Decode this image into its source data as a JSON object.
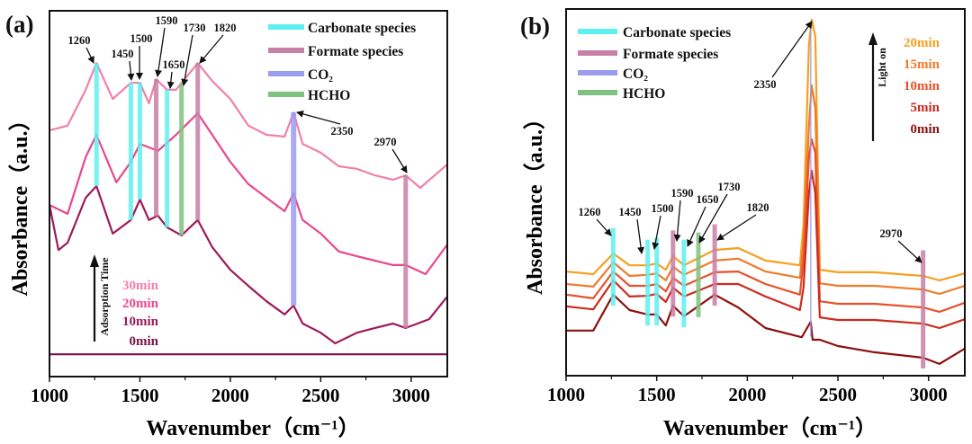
{
  "chart_data": [
    {
      "panel": "(a)",
      "type": "line",
      "xlabel": "Wavenumber（cm⁻¹）",
      "ylabel": "Absorbance（a.u.）",
      "xlim": [
        1000,
        3200
      ],
      "ylim": [
        0,
        100
      ],
      "xticks": [
        "1000",
        "1500",
        "2000",
        "2500",
        "3000"
      ],
      "xtick_values": [
        1000,
        1500,
        2000,
        2500,
        3000
      ],
      "grid": false,
      "legend_placement": "top-right",
      "legend": [
        {
          "label": "Carbonate species",
          "color": "#5ef0f0"
        },
        {
          "label": "Formate species",
          "color": "#c77fa6"
        },
        {
          "label": "CO₂",
          "color": "#9b9bf0"
        },
        {
          "label": "HCHO",
          "color": "#7fc27f"
        }
      ],
      "peaks": [
        {
          "label": "1260",
          "x": 1260,
          "species": "Carbonate species"
        },
        {
          "label": "1450",
          "x": 1450,
          "species": "Carbonate species"
        },
        {
          "label": "1500",
          "x": 1500,
          "species": "Carbonate species"
        },
        {
          "label": "1590",
          "x": 1590,
          "species": "Formate species"
        },
        {
          "label": "1650",
          "x": 1650,
          "species": "Carbonate species"
        },
        {
          "label": "1730",
          "x": 1730,
          "species": "HCHO"
        },
        {
          "label": "1820",
          "x": 1820,
          "species": "Formate species"
        },
        {
          "label": "2350",
          "x": 2350,
          "species": "CO₂"
        },
        {
          "label": "2970",
          "x": 2970,
          "species": "Formate species"
        }
      ],
      "arrow_annotation": "Adsorption Time",
      "series": [
        {
          "name": "30min",
          "color": "#f27fab",
          "x": [
            1000,
            1100,
            1200,
            1260,
            1350,
            1450,
            1500,
            1550,
            1590,
            1650,
            1700,
            1820,
            1900,
            2000,
            2100,
            2200,
            2300,
            2350,
            2400,
            2500,
            2600,
            2700,
            2800,
            2900,
            2970,
            3050,
            3200
          ],
          "y": [
            67.3,
            68.6,
            78.4,
            85.7,
            75.9,
            80.3,
            80.3,
            74.7,
            81.3,
            78.4,
            78.4,
            85.7,
            80.8,
            75.9,
            68.6,
            66.1,
            65.6,
            72.2,
            63.6,
            61.2,
            57.5,
            56.8,
            55.0,
            53.8,
            55.0,
            51.6,
            58.0
          ]
        },
        {
          "name": "20min",
          "color": "#e8478f",
          "x": [
            1000,
            1100,
            1200,
            1260,
            1370,
            1450,
            1500,
            1600,
            1700,
            1820,
            1900,
            2000,
            2100,
            2200,
            2300,
            2350,
            2400,
            2500,
            2600,
            2700,
            2800,
            2900,
            2970,
            3080,
            3200
          ],
          "y": [
            46.9,
            44.5,
            60.0,
            66.1,
            53.1,
            58.7,
            63.6,
            61.7,
            66.1,
            72.0,
            66.1,
            58.7,
            52.6,
            48.9,
            45.2,
            50.1,
            42.8,
            39.1,
            34.2,
            32.9,
            31.7,
            30.5,
            30.5,
            28.0,
            36.1
          ]
        },
        {
          "name": "10min",
          "color": "#9e1a5a",
          "x": [
            1000,
            1050,
            1100,
            1200,
            1260,
            1350,
            1450,
            1500,
            1550,
            1600,
            1650,
            1730,
            1820,
            1900,
            2000,
            2100,
            2200,
            2300,
            2350,
            2400,
            2500,
            2580,
            2700,
            2800,
            2900,
            2970,
            3100,
            3200
          ],
          "y": [
            46.9,
            34.6,
            36.6,
            48.9,
            52.1,
            39.1,
            42.8,
            48.4,
            42.8,
            44.0,
            40.8,
            38.6,
            42.8,
            35.4,
            29.2,
            24.8,
            20.6,
            17.0,
            19.4,
            14.5,
            12.0,
            9.1,
            12.0,
            13.3,
            14.5,
            13.3,
            15.7,
            21.9
          ]
        },
        {
          "name": "0min",
          "color": "#7a1048",
          "x": [
            1000,
            3200
          ],
          "y": [
            6.1,
            6.1
          ]
        }
      ]
    },
    {
      "panel": "(b)",
      "type": "line",
      "xlabel": "Wavenumber（cm⁻¹）",
      "ylabel": "Absorbance（a.u.）",
      "xlim": [
        1000,
        3200
      ],
      "ylim": [
        0,
        100
      ],
      "xticks": [
        "1000",
        "1500",
        "2000",
        "2500",
        "3000"
      ],
      "xtick_values": [
        1000,
        1500,
        2000,
        2500,
        3000
      ],
      "grid": false,
      "legend_placement": "top-left",
      "legend": [
        {
          "label": "Carbonate species",
          "color": "#5ef0f0"
        },
        {
          "label": "Formate species",
          "color": "#c77fa6"
        },
        {
          "label": "CO₂",
          "color": "#9b9bf0"
        },
        {
          "label": "HCHO",
          "color": "#7fc27f"
        }
      ],
      "peaks": [
        {
          "label": "1260",
          "x": 1260,
          "species": "Carbonate species"
        },
        {
          "label": "1450",
          "x": 1450,
          "species": "Carbonate species"
        },
        {
          "label": "1500",
          "x": 1500,
          "species": "Carbonate species"
        },
        {
          "label": "1590",
          "x": 1590,
          "species": "Formate species"
        },
        {
          "label": "1650",
          "x": 1650,
          "species": "Carbonate species"
        },
        {
          "label": "1730",
          "x": 1730,
          "species": "HCHO"
        },
        {
          "label": "1820",
          "x": 1820,
          "species": "Formate species"
        },
        {
          "label": "2350",
          "x": 2350,
          "species": "CO₂"
        },
        {
          "label": "2970",
          "x": 2970,
          "species": "Formate species"
        }
      ],
      "arrow_annotation": "Light on",
      "series": [
        {
          "name": "20min",
          "color": "#f5a020",
          "x": [
            1000,
            1150,
            1260,
            1350,
            1450,
            1500,
            1550,
            1590,
            1650,
            1820,
            1950,
            2100,
            2290,
            2310,
            2340,
            2355,
            2375,
            2400,
            2500,
            2700,
            2970,
            3060,
            3200
          ],
          "y": [
            28.4,
            27.7,
            33.3,
            30.1,
            30.1,
            30.6,
            28.9,
            32.6,
            30.1,
            34.3,
            34.8,
            31.4,
            30.1,
            41.2,
            90.2,
            97.1,
            92.6,
            28.9,
            28.2,
            28.2,
            27.2,
            26.0,
            27.9
          ]
        },
        {
          "name": "15min",
          "color": "#f07a28",
          "x": [
            1000,
            1150,
            1260,
            1350,
            1450,
            1500,
            1550,
            1590,
            1650,
            1820,
            1950,
            2100,
            2290,
            2310,
            2340,
            2355,
            2375,
            2400,
            2500,
            2700,
            2970,
            3060,
            3200
          ],
          "y": [
            25.0,
            24.3,
            30.9,
            27.2,
            27.5,
            27.9,
            26.0,
            29.7,
            27.5,
            31.4,
            31.9,
            28.4,
            26.7,
            36.3,
            68.1,
            79.2,
            73.0,
            25.2,
            24.5,
            24.5,
            23.5,
            22.3,
            24.5
          ]
        },
        {
          "name": "10min",
          "color": "#e8502a",
          "x": [
            1000,
            1150,
            1260,
            1350,
            1450,
            1500,
            1550,
            1590,
            1650,
            1820,
            1950,
            2100,
            2290,
            2310,
            2340,
            2355,
            2375,
            2400,
            2500,
            2700,
            2970,
            3060,
            3200
          ],
          "y": [
            22.1,
            21.1,
            28.4,
            24.5,
            24.5,
            25.0,
            23.0,
            26.7,
            24.5,
            28.2,
            28.4,
            25.0,
            22.1,
            31.4,
            59.6,
            64.5,
            60.8,
            20.3,
            19.6,
            19.6,
            18.6,
            17.4,
            19.9
          ]
        },
        {
          "name": "5min",
          "color": "#cc2a1e",
          "x": [
            1000,
            1150,
            1260,
            1350,
            1450,
            1500,
            1550,
            1590,
            1650,
            1820,
            1950,
            2100,
            2290,
            2310,
            2340,
            2355,
            2375,
            2400,
            2500,
            2700,
            2970,
            3060,
            3200
          ],
          "y": [
            18.9,
            18.1,
            26.0,
            21.6,
            21.8,
            22.3,
            20.1,
            24.0,
            21.6,
            25.0,
            25.0,
            21.6,
            17.9,
            24.0,
            49.8,
            55.9,
            49.8,
            15.9,
            15.2,
            15.2,
            14.2,
            13.0,
            15.4
          ]
        },
        {
          "name": "0min",
          "color": "#8b1010",
          "x": [
            1000,
            1150,
            1260,
            1350,
            1450,
            1500,
            1550,
            1590,
            1650,
            1820,
            1950,
            2100,
            2300,
            2350,
            2360,
            2400,
            2500,
            2700,
            2970,
            3060,
            3200
          ],
          "y": [
            12.3,
            12.3,
            22.1,
            17.9,
            16.7,
            16.7,
            13.7,
            19.1,
            16.2,
            22.1,
            18.6,
            13.0,
            10.5,
            14.7,
            9.8,
            9.8,
            8.1,
            6.4,
            4.9,
            3.2,
            7.4
          ]
        }
      ]
    }
  ]
}
